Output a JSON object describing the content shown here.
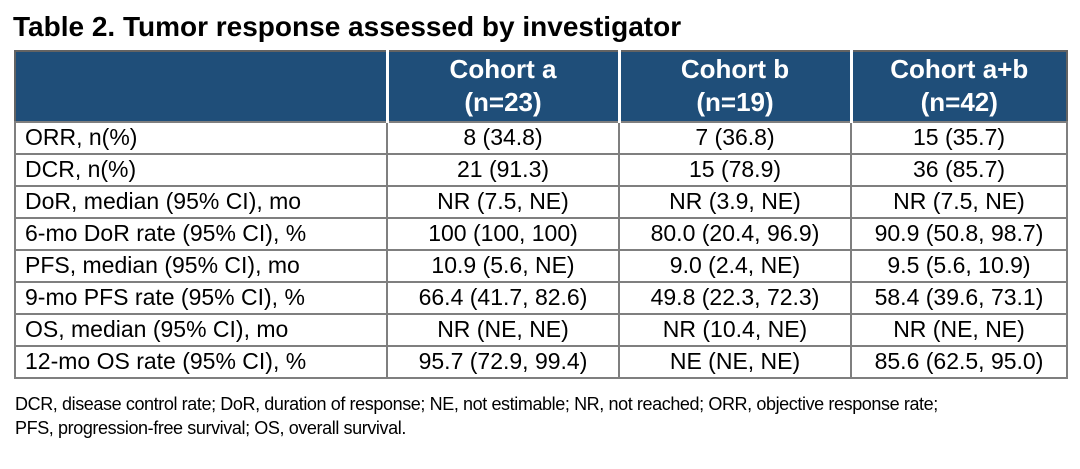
{
  "title": "Table 2. Tumor response assessed by investigator",
  "table": {
    "header": {
      "cohort_a": {
        "title": "Cohort a",
        "n": "(n=23)"
      },
      "cohort_b": {
        "title": "Cohort b",
        "n": "(n=19)"
      },
      "cohort_ab": {
        "title": "Cohort a+b",
        "n": "(n=42)"
      }
    },
    "rows": [
      {
        "label": "ORR, n(%)",
        "a": "8 (34.8)",
        "b": "7 (36.8)",
        "ab": "15 (35.7)"
      },
      {
        "label": "DCR, n(%)",
        "a": "21 (91.3)",
        "b": "15 (78.9)",
        "ab": "36 (85.7)"
      },
      {
        "label": "DoR, median (95% CI), mo",
        "a": "NR (7.5, NE)",
        "b": "NR (3.9, NE)",
        "ab": "NR (7.5, NE)"
      },
      {
        "label": "6-mo DoR rate (95% CI), %",
        "a": "100 (100, 100)",
        "b": "80.0 (20.4, 96.9)",
        "ab": "90.9 (50.8, 98.7)"
      },
      {
        "label": "PFS, median (95% CI), mo",
        "a": "10.9 (5.6, NE)",
        "b": "9.0 (2.4, NE)",
        "ab": "9.5 (5.6, 10.9)"
      },
      {
        "label": "9-mo PFS rate (95% CI), %",
        "a": "66.4 (41.7, 82.6)",
        "b": "49.8 (22.3, 72.3)",
        "ab": "58.4 (39.6, 73.1)"
      },
      {
        "label": "OS, median (95% CI), mo",
        "a": "NR (NE, NE)",
        "b": "NR (10.4, NE)",
        "ab": "NR (NE, NE)"
      },
      {
        "label": "12-mo OS rate (95% CI), %",
        "a": "95.7 (72.9, 99.4)",
        "b": "NE (NE, NE)",
        "ab": "85.6 (62.5, 95.0)"
      }
    ]
  },
  "footnote": {
    "lines": [
      "DCR, disease control rate; DoR, duration of response; NE, not estimable; NR, not reached; ORR, objective response rate;",
      "PFS, progression-free survival; OS, overall survival."
    ]
  },
  "colors": {
    "header_bg": "#1F4E79",
    "header_text": "#FFFFFF",
    "border": "#7F7F7F"
  }
}
